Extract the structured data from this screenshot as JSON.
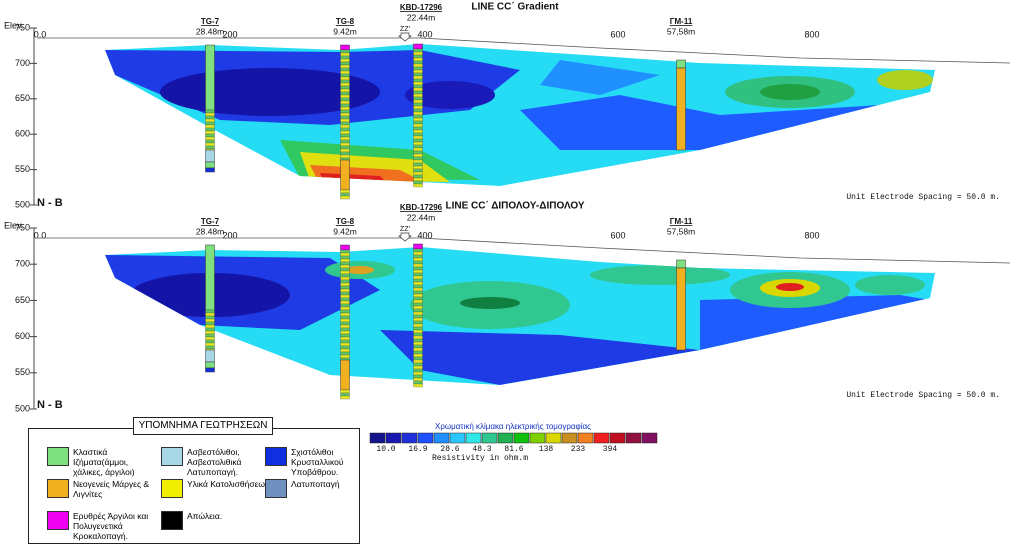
{
  "sections": [
    {
      "title": "LINE CC΄ Gradient",
      "direction": "N - B",
      "spacing_note": "Unit Electrode Spacing = 50.0 m."
    },
    {
      "title": "LINE CC΄ ΔΙΠΟΛΟΥ-ΔΙΠΟΛΟΥ",
      "direction": "N - B",
      "spacing_note": "Unit Electrode Spacing = 50.0 m."
    }
  ],
  "elevation_label": "Elev.",
  "elevation_ticks": [
    "750",
    "700",
    "650",
    "600",
    "550",
    "500"
  ],
  "distance_ticks": [
    "0.0",
    "200",
    "400",
    "600",
    "800"
  ],
  "boreholes": [
    {
      "name": "TG-7",
      "depth": "28.48m"
    },
    {
      "name": "TG-8",
      "depth": "9.42m"
    },
    {
      "name": "KBD-17296",
      "depth": "22.44m",
      "marker": "ZZ'"
    },
    {
      "name": "ΓΜ-11",
      "depth": "57,58m"
    }
  ],
  "legend": {
    "title": "ΥΠΟΜΝΗΜΑ ΓΕΩΤΡΗΣΕΩΝ",
    "items": [
      "Κλαστικά Ιζήματα(άμμοι, χάλικες, άργιλοι)",
      "Ασβεστόλιθοι, Ασβεστολιθικά Λατυποπαγή.",
      "Σχιστόλιθοι Κρυσταλλικού Υποβάθρου.",
      "Νεογενείς Μάργες & Λιγνίτες",
      "Υλικά Κατολισθήσεων.",
      "Λατυποπαγή",
      "Ερυθρές Άργιλοι και Πολυγενετικά Κροκαλοπαγή.",
      "Απώλεια."
    ]
  },
  "color_scale": {
    "title": "Χρωματική κλίμακα ηλεκτρικής τομογραφίας",
    "labels": [
      "10.0",
      "16.9",
      "28.6",
      "48.3",
      "81.6",
      "138",
      "233",
      "394"
    ],
    "unit": "Resistivity in ohm.m"
  }
}
